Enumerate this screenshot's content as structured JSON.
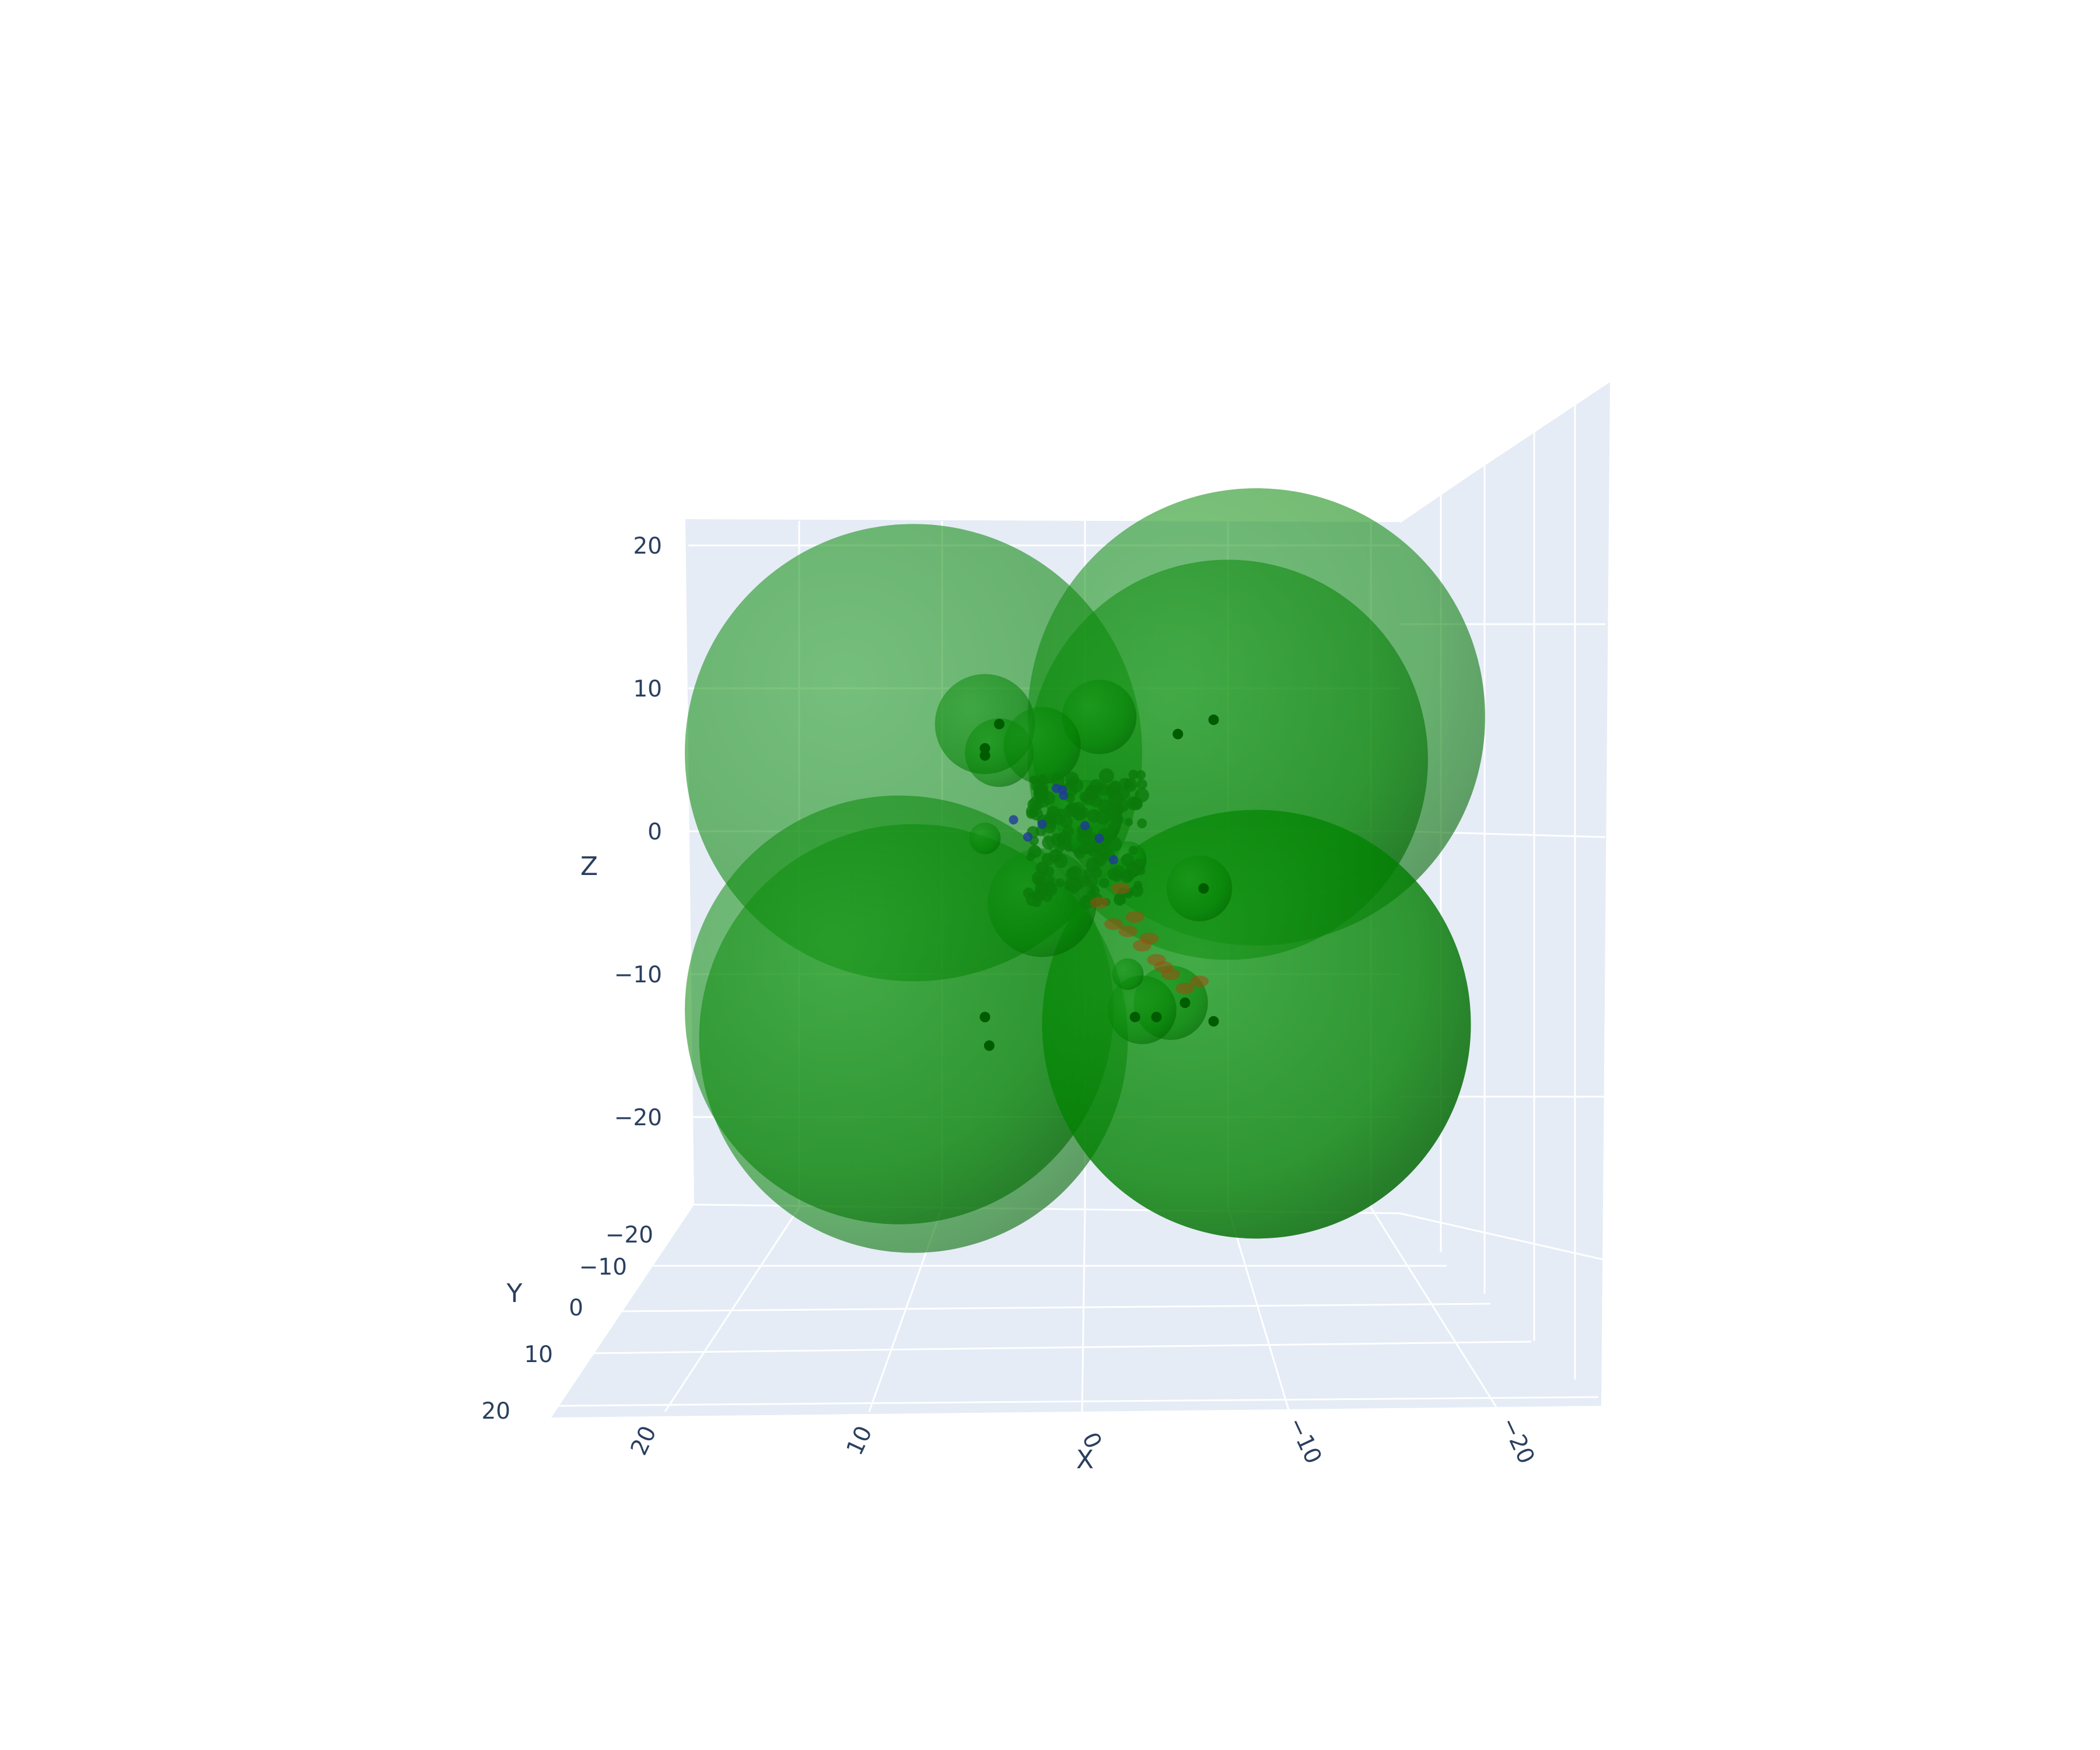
{
  "chart_data": {
    "type": "scatter3d",
    "title": "",
    "axes": {
      "x": {
        "title": "X",
        "range": [
          -25,
          25
        ],
        "ticks": [
          20,
          10,
          0,
          -10,
          -20
        ],
        "tick_labels": [
          "20",
          "10",
          "0",
          "−10",
          "−20"
        ]
      },
      "y": {
        "title": "Y",
        "range": [
          -20,
          20
        ],
        "ticks": [
          -20,
          -10,
          0,
          10,
          20
        ],
        "tick_labels": [
          "−20",
          "−10",
          "0",
          "10",
          "20"
        ]
      },
      "z": {
        "title": "Z",
        "range": [
          -25,
          22
        ],
        "ticks": [
          20,
          10,
          0,
          -10,
          -20
        ],
        "tick_labels": [
          "20",
          "10",
          "0",
          "−10",
          "−20"
        ]
      }
    },
    "grid": true,
    "background_color": "#e5ecf6",
    "colors": {
      "spheres": "#008000",
      "blue_markers": "#1f3b9a",
      "orange_markers": "#a04a10"
    },
    "spheres": [
      {
        "x": 12,
        "z": 5.5,
        "r": 16
      },
      {
        "x": -12,
        "z": 8,
        "r": 16
      },
      {
        "x": -10,
        "z": 5,
        "r": 14
      },
      {
        "x": 12,
        "z": -14.5,
        "r": 15
      },
      {
        "x": 13,
        "z": -12.5,
        "r": 15
      },
      {
        "x": -12,
        "z": -13.5,
        "r": 15
      },
      {
        "x": -12,
        "z": -13.5,
        "r": 15
      },
      {
        "x": 7,
        "z": 7.5,
        "r": 3.5
      },
      {
        "x": 6,
        "z": 5.5,
        "r": 2.4
      },
      {
        "x": -1,
        "z": 8,
        "r": 2.6
      },
      {
        "x": 3,
        "z": 6,
        "r": 2.7
      },
      {
        "x": -8,
        "z": -4,
        "r": 2.3
      },
      {
        "x": -3,
        "z": -2,
        "r": 1.3
      },
      {
        "x": 3,
        "z": -5,
        "r": 3.8
      },
      {
        "x": -6,
        "z": -12,
        "r": 2.6
      },
      {
        "x": -4,
        "z": -12.5,
        "r": 2.4
      },
      {
        "x": 7,
        "z": -0.5,
        "r": 1.1
      },
      {
        "x": -3,
        "z": -10,
        "r": 1.1
      },
      {
        "x": 0,
        "z": 1,
        "r": 2.6
      }
    ],
    "points_green": [
      {
        "x": 6,
        "z": 7.5
      },
      {
        "x": 7,
        "z": 5.8
      },
      {
        "x": 7,
        "z": 5.3
      },
      {
        "x": -6.5,
        "z": 6.8
      },
      {
        "x": -9,
        "z": 7.8
      },
      {
        "x": 7,
        "z": -13
      },
      {
        "x": 6.7,
        "z": -15
      },
      {
        "x": -8.3,
        "z": -4
      },
      {
        "x": -5,
        "z": -13
      },
      {
        "x": -7,
        "z": -12
      },
      {
        "x": -9,
        "z": -13.3
      },
      {
        "x": -3.5,
        "z": -13
      }
    ],
    "points_blue": [
      {
        "x": 2,
        "z": 3
      },
      {
        "x": 1.5,
        "z": 2.5
      },
      {
        "x": 5,
        "z": 0.8
      },
      {
        "x": 0,
        "z": 0.4
      },
      {
        "x": -1,
        "z": -0.5
      },
      {
        "x": -2,
        "z": -2
      },
      {
        "x": 3,
        "z": 0.5
      },
      {
        "x": 1.6,
        "z": 2.9
      },
      {
        "x": 4,
        "z": -0.4
      }
    ],
    "points_orange": [
      {
        "x": -1,
        "z": -5
      },
      {
        "x": -2,
        "z": -6.5
      },
      {
        "x": -3,
        "z": -7
      },
      {
        "x": -4,
        "z": -8
      },
      {
        "x": -5,
        "z": -9
      },
      {
        "x": -6,
        "z": -10
      },
      {
        "x": -7,
        "z": -11
      },
      {
        "x": -2.5,
        "z": -4
      },
      {
        "x": -3.5,
        "z": -6
      },
      {
        "x": -4.5,
        "z": -7.5
      },
      {
        "x": -5.5,
        "z": -9.5
      },
      {
        "x": -8,
        "z": -10.5
      }
    ]
  }
}
